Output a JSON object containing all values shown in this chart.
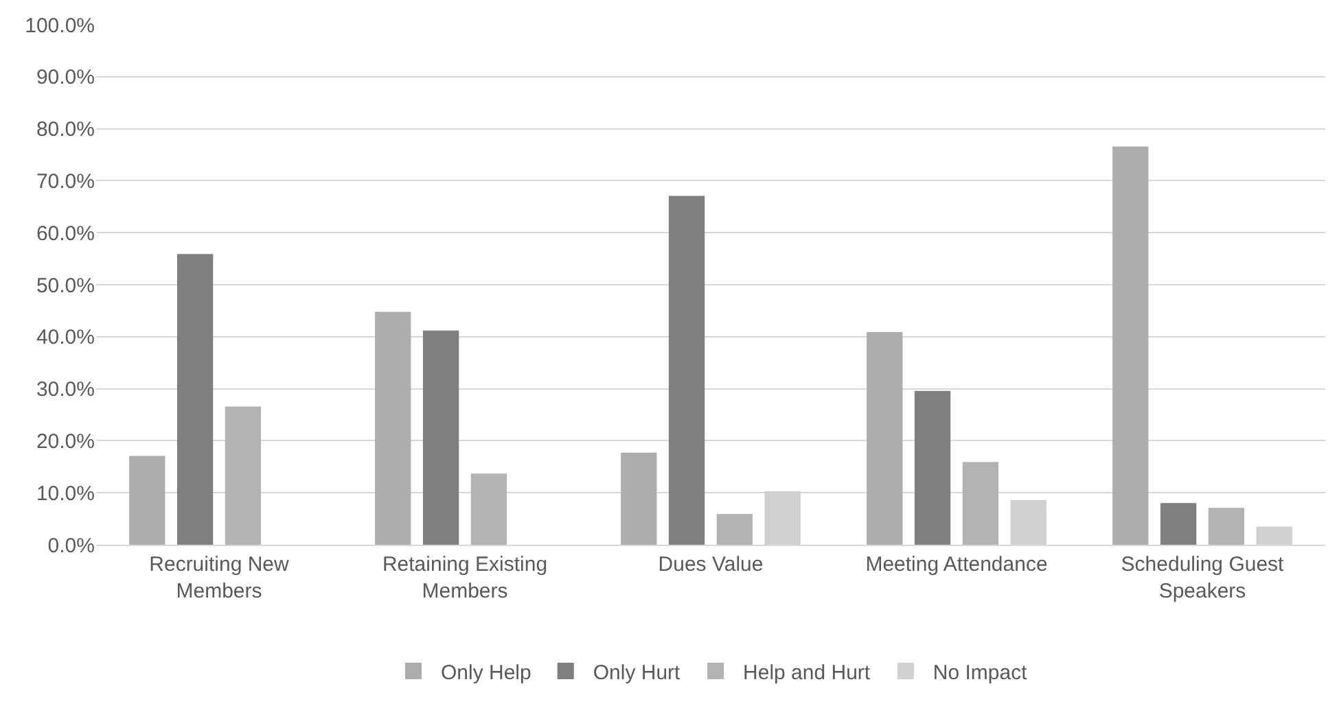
{
  "chart_data": {
    "type": "bar",
    "categories": [
      "Recruiting New Members",
      "Retaining Existing Members",
      "Dues Value",
      "Meeting Attendance",
      "Scheduling Guest Speakers"
    ],
    "series": [
      {
        "name": "Only Help",
        "color": "#aeacac",
        "values": [
          17.1,
          44.8,
          17.7,
          40.9,
          76.6
        ]
      },
      {
        "name": "Only Hurt",
        "color": "#7f7f7f",
        "values": [
          55.9,
          41.2,
          67.1,
          29.6,
          8.0
        ]
      },
      {
        "name": "Help and Hurt",
        "color": "#b3b3b3",
        "values": [
          26.6,
          13.7,
          5.9,
          15.9,
          7.1
        ]
      },
      {
        "name": "No Impact",
        "color": "#d0d0d0",
        "values": [
          null,
          null,
          10.3,
          8.6,
          3.5
        ]
      }
    ],
    "ylim": [
      0,
      100
    ],
    "yticks": [
      {
        "value": 0,
        "label": "0.0%"
      },
      {
        "value": 10,
        "label": "10.0%"
      },
      {
        "value": 20,
        "label": "20.0%"
      },
      {
        "value": 30,
        "label": "30.0%"
      },
      {
        "value": 40,
        "label": "40.0%"
      },
      {
        "value": 50,
        "label": "50.0%"
      },
      {
        "value": 60,
        "label": "60.0%"
      },
      {
        "value": 70,
        "label": "70.0%"
      },
      {
        "value": 80,
        "label": "80.0%"
      },
      {
        "value": 90,
        "label": "90.0%"
      },
      {
        "value": 100,
        "label": "100.0%"
      }
    ],
    "grid": "y",
    "legend": "bottom"
  }
}
